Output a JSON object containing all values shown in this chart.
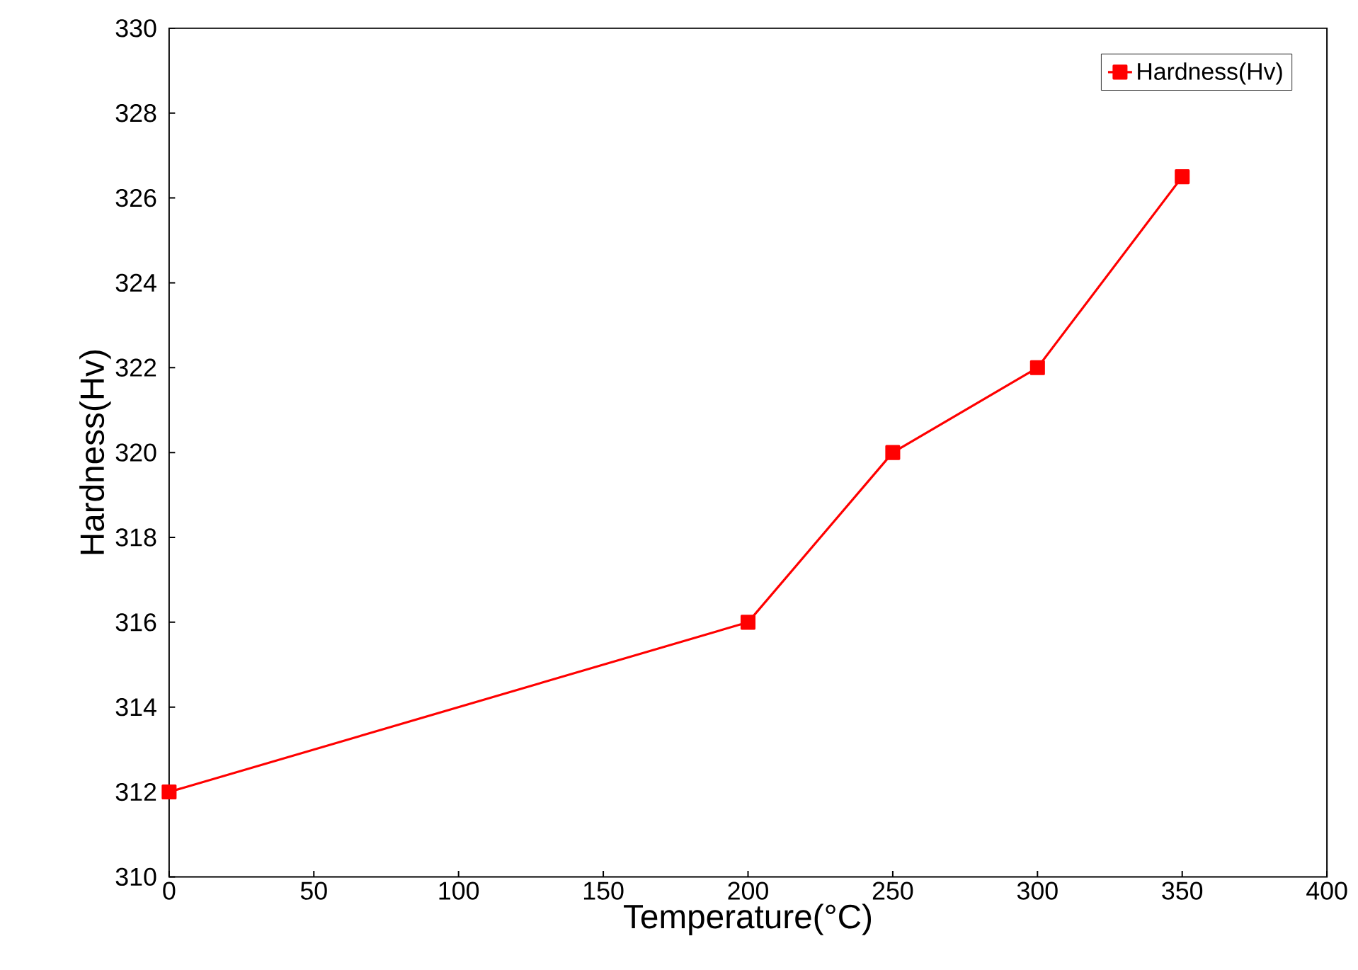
{
  "chart_data": {
    "type": "line",
    "xlabel": "Temperature(°C)",
    "ylabel": "Hardness(Hv)",
    "x": [
      0,
      200,
      250,
      300,
      350
    ],
    "series": [
      {
        "name": "Hardness(Hv)",
        "color": "#ff0000",
        "values": [
          312,
          316,
          320,
          322,
          326.5
        ]
      }
    ],
    "xlim": [
      0,
      400
    ],
    "xticks": [
      0,
      50,
      100,
      150,
      200,
      250,
      300,
      350,
      400
    ],
    "ylim": [
      310,
      330
    ],
    "yticks": [
      310,
      312,
      314,
      316,
      318,
      320,
      322,
      324,
      326,
      328,
      330
    ],
    "grid": false,
    "legend": "top right",
    "marker": "square",
    "line_style": "solid"
  }
}
